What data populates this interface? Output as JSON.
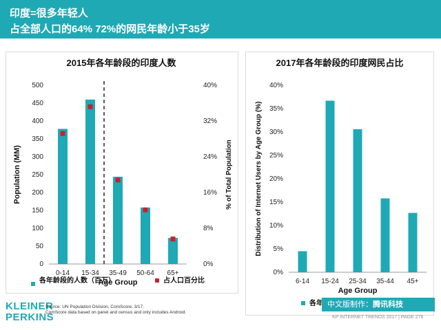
{
  "header": {
    "line1": "印度=很多年轻人",
    "line2": "占全部人口的64%   72%的网民年龄小于35岁"
  },
  "colors": {
    "accent": "#1fa9b5",
    "marker": "#cc1f2d"
  },
  "chart_data": [
    {
      "type": "bar",
      "title": "2015年各年龄段的印度人数",
      "categories": [
        "0-14",
        "15-34",
        "35-49",
        "50-64",
        "65+"
      ],
      "series": [
        {
          "name": "各年龄段的人数（百万）",
          "values": [
            378,
            460,
            244,
            158,
            73
          ],
          "axis": "left"
        },
        {
          "name": "占人口百分比",
          "values": [
            29.2,
            35.2,
            18.8,
            12.1,
            5.6
          ],
          "axis": "right",
          "style": "marker"
        }
      ],
      "xlabel": "Age Group",
      "ylabel": "Population (MM)",
      "ylabel_right": "% of Total Population",
      "ylim": [
        0,
        500
      ],
      "y_ticks": [
        "0",
        "50",
        "100",
        "150",
        "200",
        "250",
        "300",
        "350",
        "400",
        "450",
        "500"
      ],
      "ylim_right": [
        0,
        40
      ],
      "y_right_ticks": [
        "0%",
        "8%",
        "16%",
        "24%",
        "32%",
        "40%"
      ],
      "divider_after": "15-34",
      "legend": "bottom"
    },
    {
      "type": "bar",
      "title": "2017年各年龄段的印度网民占比",
      "categories": [
        "6-14",
        "15-24",
        "25-34",
        "35-44",
        "45+"
      ],
      "series": [
        {
          "name": "各年龄段",
          "values": [
            4.5,
            36.7,
            30.6,
            15.8,
            12.7
          ]
        }
      ],
      "xlabel": "Age Group",
      "ylabel": "Distribution of Internet Users by Age Group (%)",
      "ylim": [
        0,
        40
      ],
      "y_ticks": [
        "0%",
        "5%",
        "10%",
        "15%",
        "20%",
        "25%",
        "30%",
        "35%",
        "40%"
      ],
      "legend": "bottom"
    }
  ],
  "footer": {
    "logo_line1": "KLEINER",
    "logo_line2": "PERKINS",
    "source_line1": "Source: UN Population Division, ComScore, 3/17.",
    "source_line2": "ComScore data based on panel and census and only includes Android.",
    "badge_prefix": "中文版制作：",
    "badge_name": "腾讯科技",
    "right_text": "KP INTERNET TRENDS 2017  |  PAGE 276"
  }
}
